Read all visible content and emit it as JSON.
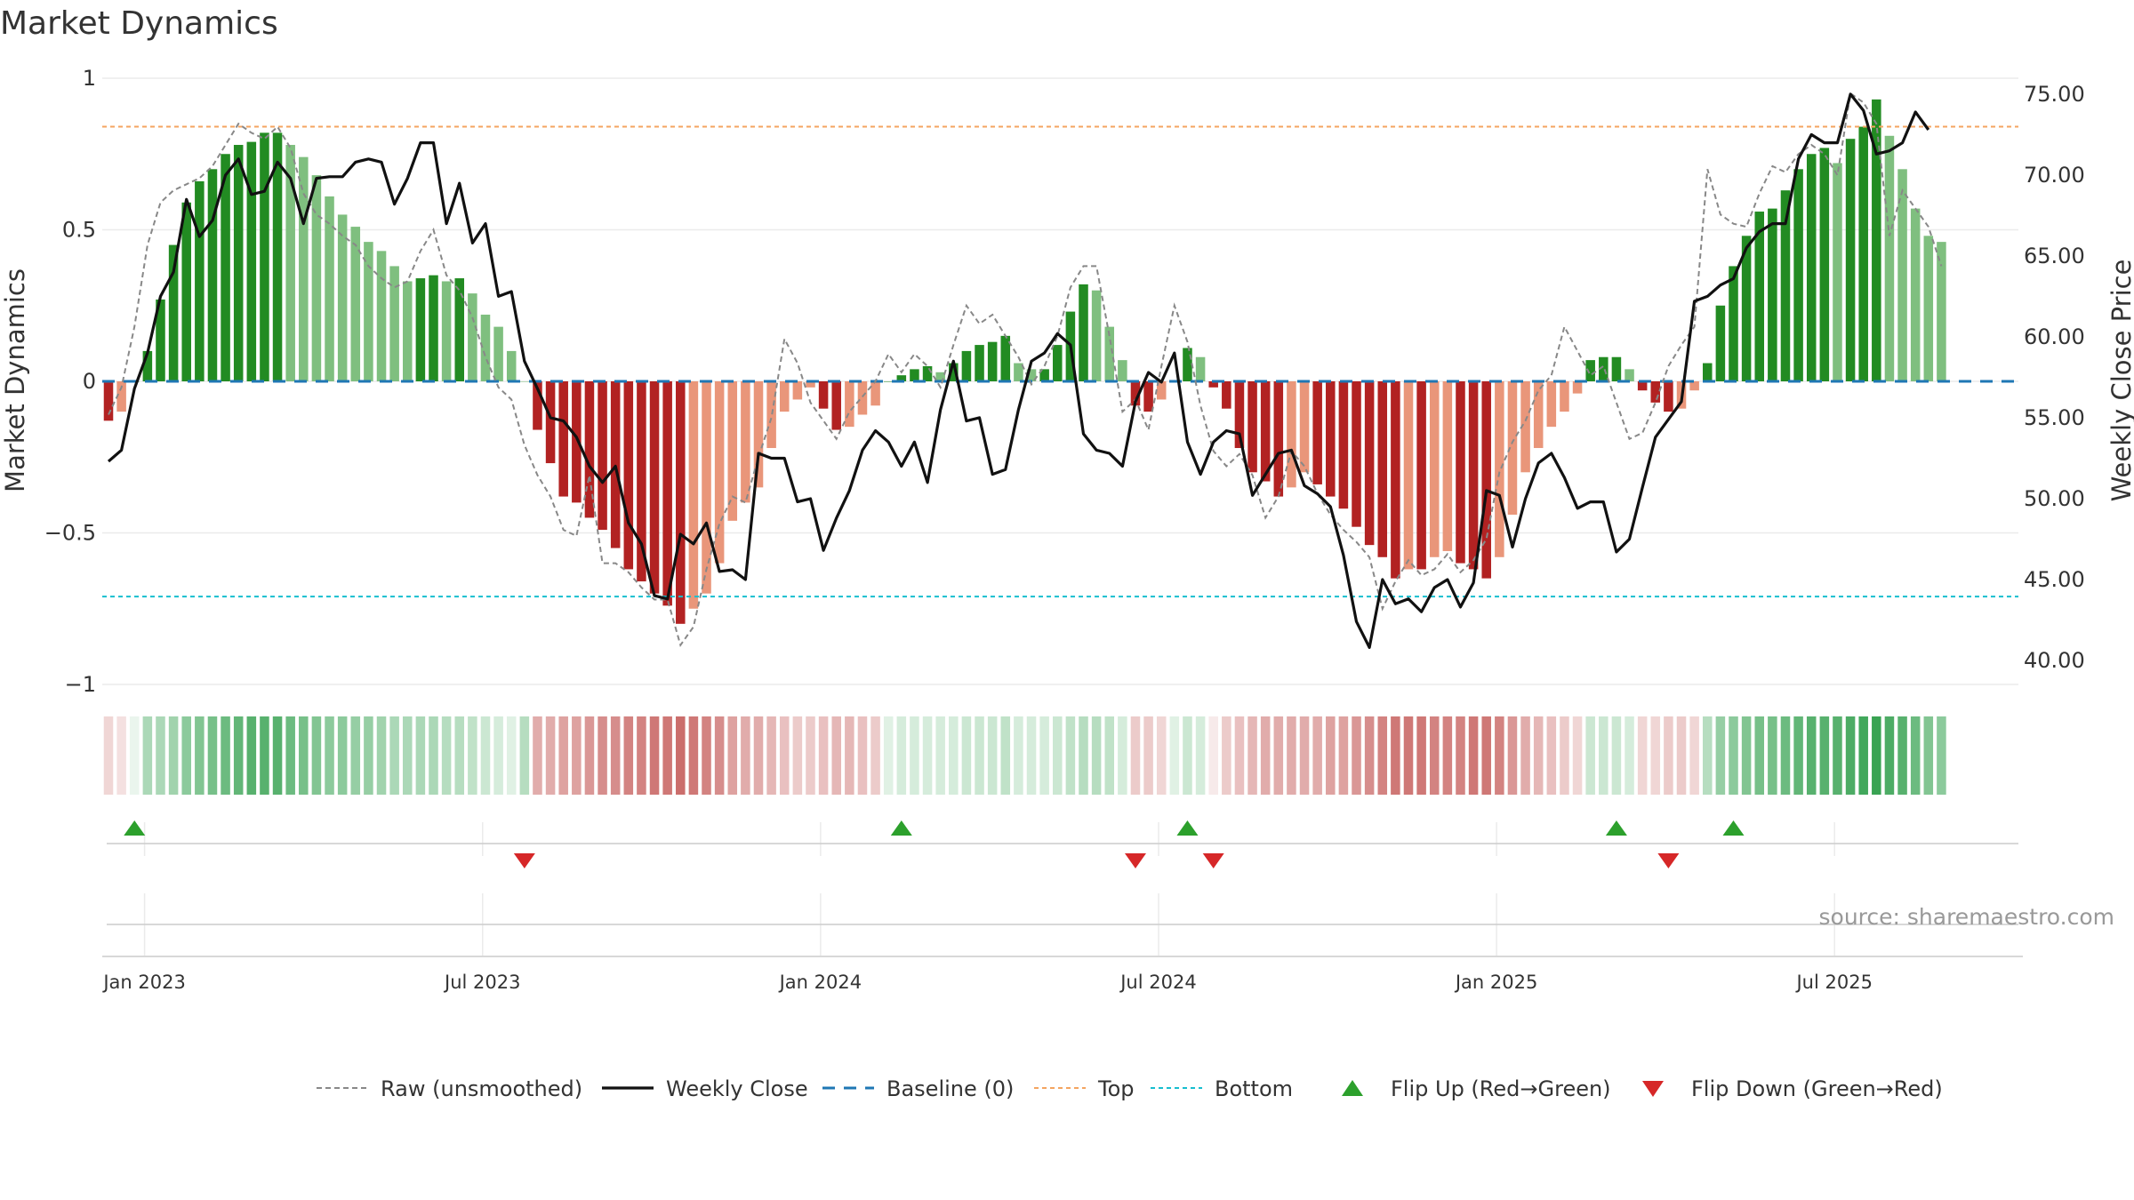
{
  "title": "Market Dynamics",
  "source": "source: sharemaestro.com",
  "colors": {
    "strong_green": "#228b22",
    "light_green": "#7fbf7f",
    "strong_red": "#b22222",
    "light_red": "#e9967a",
    "close_line": "#111111",
    "raw_line": "#888888",
    "baseline": "#1f77b4",
    "top": "#f4a460",
    "bottom": "#17becf",
    "flip_up": "#2ca02c",
    "flip_down": "#d62728"
  },
  "chart_data": {
    "type": "bar",
    "title": "Market Dynamics",
    "x_start": "2022-12-26",
    "x_ticks": [
      "Jan 2023",
      "Jul 2023",
      "Jan 2024",
      "Jul 2024",
      "Jan 2025",
      "Jul 2025"
    ],
    "y_left": {
      "label": "Market Dynamics",
      "lim": [
        -1,
        1
      ],
      "ticks": [
        "1",
        "0.5",
        "0",
        "−0.5",
        "−1"
      ]
    },
    "y_right": {
      "label": "Weekly Close Price",
      "lim": [
        39.0,
        77.0
      ],
      "ticks": [
        "75.00",
        "70.00",
        "65.00",
        "60.00",
        "55.00",
        "50.00",
        "45.00",
        "40.00"
      ]
    },
    "reference_lines": {
      "baseline": 0,
      "top": 0.84,
      "bottom": -0.71
    },
    "series": [
      {
        "name": "Market Dynamics (smoothed)",
        "values": [
          -0.13,
          -0.1,
          0.0,
          0.1,
          0.27,
          0.45,
          0.59,
          0.66,
          0.7,
          0.75,
          0.78,
          0.79,
          0.82,
          0.82,
          0.78,
          0.74,
          0.68,
          0.61,
          0.55,
          0.51,
          0.46,
          0.43,
          0.38,
          0.33,
          0.34,
          0.35,
          0.33,
          0.34,
          0.29,
          0.22,
          0.18,
          0.1,
          0.0,
          -0.16,
          -0.27,
          -0.38,
          -0.4,
          -0.45,
          -0.49,
          -0.55,
          -0.62,
          -0.66,
          -0.7,
          -0.74,
          -0.8,
          -0.75,
          -0.7,
          -0.6,
          -0.46,
          -0.4,
          -0.35,
          -0.22,
          -0.1,
          -0.06,
          -0.02,
          -0.09,
          -0.16,
          -0.15,
          -0.11,
          -0.08,
          0.0,
          0.02,
          0.04,
          0.05,
          0.03,
          0.06,
          0.1,
          0.12,
          0.13,
          0.15,
          0.06,
          0.04,
          0.04,
          0.12,
          0.23,
          0.32,
          0.3,
          0.18,
          0.07,
          -0.08,
          -0.1,
          -0.06,
          0.0,
          0.11,
          0.08,
          -0.02,
          -0.09,
          -0.22,
          -0.3,
          -0.33,
          -0.38,
          -0.35,
          -0.3,
          -0.34,
          -0.38,
          -0.42,
          -0.48,
          -0.54,
          -0.58,
          -0.65,
          -0.62,
          -0.62,
          -0.58,
          -0.56,
          -0.6,
          -0.62,
          -0.65,
          -0.58,
          -0.44,
          -0.3,
          -0.22,
          -0.15,
          -0.1,
          -0.04,
          0.07,
          0.08,
          0.08,
          0.04,
          -0.03,
          -0.07,
          -0.1,
          -0.09,
          -0.03,
          0.06,
          0.25,
          0.38,
          0.48,
          0.56,
          0.57,
          0.63,
          0.7,
          0.75,
          0.77,
          0.72,
          0.8,
          0.84,
          0.93,
          0.81,
          0.7,
          0.57,
          0.48,
          0.46
        ]
      },
      {
        "name": "Raw (unsmoothed)",
        "values": [
          -0.11,
          -0.02,
          0.18,
          0.45,
          0.59,
          0.63,
          0.65,
          0.67,
          0.71,
          0.78,
          0.85,
          0.82,
          0.8,
          0.84,
          0.77,
          0.62,
          0.55,
          0.52,
          0.48,
          0.45,
          0.38,
          0.34,
          0.31,
          0.33,
          0.43,
          0.5,
          0.35,
          0.3,
          0.21,
          0.08,
          -0.02,
          -0.06,
          -0.21,
          -0.31,
          -0.38,
          -0.49,
          -0.51,
          -0.31,
          -0.6,
          -0.6,
          -0.63,
          -0.68,
          -0.72,
          -0.72,
          -0.87,
          -0.81,
          -0.62,
          -0.47,
          -0.38,
          -0.4,
          -0.25,
          -0.12,
          0.14,
          0.06,
          -0.07,
          -0.13,
          -0.19,
          -0.1,
          -0.05,
          0.0,
          0.09,
          0.03,
          0.09,
          0.05,
          -0.02,
          0.12,
          0.25,
          0.19,
          0.22,
          0.15,
          0.08,
          -0.01,
          0.05,
          0.15,
          0.31,
          0.38,
          0.38,
          0.15,
          -0.1,
          -0.06,
          -0.16,
          0.05,
          0.25,
          0.13,
          -0.08,
          -0.23,
          -0.28,
          -0.24,
          -0.31,
          -0.45,
          -0.38,
          -0.23,
          -0.28,
          -0.37,
          -0.44,
          -0.49,
          -0.53,
          -0.58,
          -0.75,
          -0.66,
          -0.59,
          -0.64,
          -0.62,
          -0.57,
          -0.63,
          -0.59,
          -0.52,
          -0.3,
          -0.2,
          -0.13,
          -0.03,
          0.02,
          0.18,
          0.1,
          0.02,
          0.05,
          -0.07,
          -0.19,
          -0.17,
          -0.07,
          0.05,
          0.12,
          0.18,
          0.7,
          0.55,
          0.52,
          0.51,
          0.62,
          0.71,
          0.69,
          0.75,
          0.78,
          0.75,
          0.68,
          0.95,
          0.92,
          0.85,
          0.48,
          0.63,
          0.57,
          0.51,
          0.38
        ]
      },
      {
        "name": "Weekly Close",
        "values": [
          52.3,
          53.0,
          56.8,
          59.0,
          62.5,
          64.0,
          68.5,
          66.2,
          67.2,
          70.0,
          71.0,
          68.8,
          69.0,
          70.8,
          69.8,
          67.0,
          69.8,
          69.9,
          69.9,
          70.8,
          71.0,
          70.8,
          68.2,
          69.8,
          72.0,
          72.0,
          67.0,
          69.5,
          65.8,
          67.0,
          62.5,
          62.8,
          58.5,
          56.8,
          55.0,
          54.8,
          53.8,
          52.0,
          51.0,
          52.0,
          48.5,
          47.2,
          44.0,
          43.8,
          47.8,
          47.2,
          48.5,
          45.5,
          45.6,
          45.0,
          52.8,
          52.5,
          52.5,
          49.8,
          50.0,
          46.8,
          48.8,
          50.5,
          53.0,
          54.2,
          53.5,
          52.0,
          53.5,
          51.0,
          55.5,
          58.5,
          54.8,
          55.0,
          51.5,
          51.8,
          55.5,
          58.5,
          59.0,
          60.2,
          59.5,
          54.0,
          53.0,
          52.8,
          52.0,
          56.0,
          57.8,
          57.2,
          59.0,
          53.5,
          51.5,
          53.5,
          54.2,
          54.0,
          50.2,
          51.5,
          52.8,
          53.0,
          50.8,
          50.3,
          49.5,
          46.5,
          42.4,
          40.8,
          45.0,
          43.5,
          43.8,
          43.0,
          44.5,
          45.0,
          43.3,
          44.8,
          50.5,
          50.2,
          47.0,
          50.0,
          52.2,
          52.8,
          51.3,
          49.4,
          49.8,
          49.8,
          46.7,
          47.5,
          50.7,
          53.8,
          54.9,
          56.0,
          62.2,
          62.5,
          63.2,
          63.6,
          65.5,
          66.5,
          67.0,
          67.0,
          71.0,
          72.5,
          72.0,
          72.0,
          75.0,
          74.0,
          71.3,
          71.5,
          72.0,
          73.9,
          72.8
        ]
      }
    ],
    "regime_strip": [
      0.2,
      0.15,
      0.1,
      0.4,
      0.4,
      0.45,
      0.55,
      0.6,
      0.65,
      0.7,
      0.75,
      0.8,
      0.8,
      0.8,
      0.7,
      0.65,
      0.6,
      0.55,
      0.55,
      0.5,
      0.5,
      0.45,
      0.4,
      0.4,
      0.4,
      0.4,
      0.35,
      0.35,
      0.3,
      0.25,
      0.2,
      0.15,
      0.35,
      0.4,
      0.4,
      0.45,
      0.45,
      0.5,
      0.55,
      0.55,
      0.6,
      0.6,
      0.65,
      0.65,
      0.7,
      0.65,
      0.6,
      0.55,
      0.45,
      0.4,
      0.4,
      0.35,
      0.3,
      0.25,
      0.25,
      0.3,
      0.35,
      0.35,
      0.3,
      0.25,
      0.15,
      0.2,
      0.2,
      0.2,
      0.2,
      0.2,
      0.25,
      0.25,
      0.25,
      0.3,
      0.2,
      0.2,
      0.2,
      0.25,
      0.3,
      0.35,
      0.35,
      0.3,
      0.2,
      0.25,
      0.25,
      0.2,
      0.15,
      0.25,
      0.2,
      0.1,
      0.25,
      0.3,
      0.35,
      0.4,
      0.4,
      0.4,
      0.4,
      0.4,
      0.45,
      0.45,
      0.5,
      0.55,
      0.6,
      0.65,
      0.65,
      0.65,
      0.6,
      0.6,
      0.6,
      0.65,
      0.65,
      0.6,
      0.5,
      0.4,
      0.35,
      0.3,
      0.25,
      0.2,
      0.25,
      0.25,
      0.25,
      0.2,
      0.2,
      0.2,
      0.25,
      0.25,
      0.2,
      0.35,
      0.5,
      0.55,
      0.6,
      0.65,
      0.65,
      0.7,
      0.75,
      0.8,
      0.8,
      0.8,
      0.85,
      0.9,
      0.95,
      0.85,
      0.8,
      0.7,
      0.6,
      0.55
    ],
    "flip_up_weeks": [
      2,
      61,
      83,
      116,
      125
    ],
    "flip_down_weeks": [
      32,
      79,
      85,
      120
    ]
  },
  "legend": [
    {
      "key": "raw",
      "label": "Raw (unsmoothed)"
    },
    {
      "key": "close",
      "label": "Weekly Close"
    },
    {
      "key": "baseline",
      "label": "Baseline (0)"
    },
    {
      "key": "top",
      "label": "Top"
    },
    {
      "key": "bottom",
      "label": "Bottom"
    },
    {
      "key": "up",
      "label": "Flip Up (Red→Green)"
    },
    {
      "key": "down",
      "label": "Flip Down (Green→Red)"
    }
  ]
}
